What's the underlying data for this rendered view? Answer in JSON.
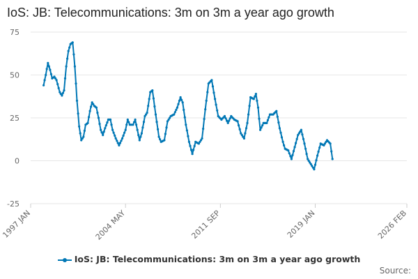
{
  "title": "IoS: JB: Telecommunications: 3m on 3m a year ago growth",
  "source_label": "Source:",
  "colors": {
    "series": "#0077b5",
    "grid": "#e6e6e6",
    "axis_text": "#666666"
  },
  "chart_data": {
    "type": "line",
    "title": "IoS: JB: Telecommunications: 3m on 3m a year ago growth",
    "x_start": "1997-01",
    "x_end": "2026-02",
    "ylim": [
      -25,
      75
    ],
    "y_ticks": [
      -25,
      0,
      25,
      50,
      75
    ],
    "x_tick_labels": [
      {
        "label": "1997 JAN",
        "month_index": 0
      },
      {
        "label": "2004 MAY",
        "month_index": 88
      },
      {
        "label": "2011 SEP",
        "month_index": 176
      },
      {
        "label": "2019 JAN",
        "month_index": 264
      },
      {
        "label": "2026 FEB",
        "month_index": 349
      }
    ],
    "grid": true,
    "legend_position": "bottom",
    "series": [
      {
        "name": "IoS: JB: Telecommunications: 3m on 3m a year ago growth",
        "start": "1998-01",
        "anchors": [
          [
            "1998-01",
            44
          ],
          [
            "1998-03",
            50
          ],
          [
            "1998-05",
            57
          ],
          [
            "1998-07",
            53
          ],
          [
            "1998-09",
            48
          ],
          [
            "1998-11",
            49
          ],
          [
            "1999-01",
            47
          ],
          [
            "1999-04",
            40
          ],
          [
            "1999-06",
            38
          ],
          [
            "1999-08",
            41
          ],
          [
            "1999-10",
            55
          ],
          [
            "1999-12",
            64
          ],
          [
            "2000-02",
            68
          ],
          [
            "2000-04",
            69
          ],
          [
            "2000-06",
            55
          ],
          [
            "2000-08",
            35
          ],
          [
            "2000-10",
            20
          ],
          [
            "2000-12",
            12
          ],
          [
            "2001-02",
            14
          ],
          [
            "2001-04",
            21
          ],
          [
            "2001-06",
            22
          ],
          [
            "2001-08",
            29
          ],
          [
            "2001-10",
            34
          ],
          [
            "2001-12",
            32
          ],
          [
            "2002-02",
            31
          ],
          [
            "2002-04",
            25
          ],
          [
            "2002-06",
            18
          ],
          [
            "2002-08",
            15
          ],
          [
            "2002-10",
            19
          ],
          [
            "2003-01",
            24
          ],
          [
            "2003-03",
            24
          ],
          [
            "2003-05",
            18
          ],
          [
            "2003-08",
            13
          ],
          [
            "2003-11",
            9
          ],
          [
            "2004-02",
            13
          ],
          [
            "2004-05",
            18
          ],
          [
            "2004-07",
            24
          ],
          [
            "2004-09",
            21
          ],
          [
            "2004-12",
            21
          ],
          [
            "2005-02",
            24
          ],
          [
            "2005-04",
            18
          ],
          [
            "2005-06",
            12
          ],
          [
            "2005-08",
            16
          ],
          [
            "2005-11",
            26
          ],
          [
            "2006-01",
            28
          ],
          [
            "2006-04",
            40
          ],
          [
            "2006-06",
            41
          ],
          [
            "2006-09",
            27
          ],
          [
            "2006-12",
            14
          ],
          [
            "2007-02",
            11
          ],
          [
            "2007-05",
            12
          ],
          [
            "2007-08",
            23
          ],
          [
            "2007-11",
            26
          ],
          [
            "2008-02",
            27
          ],
          [
            "2008-05",
            31
          ],
          [
            "2008-08",
            37
          ],
          [
            "2008-10",
            34
          ],
          [
            "2009-01",
            21
          ],
          [
            "2009-04",
            11
          ],
          [
            "2009-07",
            4
          ],
          [
            "2009-10",
            11
          ],
          [
            "2010-01",
            10
          ],
          [
            "2010-04",
            13
          ],
          [
            "2010-07",
            30
          ],
          [
            "2010-10",
            45
          ],
          [
            "2011-01",
            47
          ],
          [
            "2011-04",
            36
          ],
          [
            "2011-07",
            26
          ],
          [
            "2011-10",
            24
          ],
          [
            "2012-01",
            26
          ],
          [
            "2012-04",
            22
          ],
          [
            "2012-07",
            26
          ],
          [
            "2012-10",
            24
          ],
          [
            "2013-01",
            23
          ],
          [
            "2013-04",
            16
          ],
          [
            "2013-07",
            13
          ],
          [
            "2013-10",
            22
          ],
          [
            "2014-01",
            37
          ],
          [
            "2014-04",
            36
          ],
          [
            "2014-06",
            39
          ],
          [
            "2014-08",
            31
          ],
          [
            "2014-10",
            18
          ],
          [
            "2015-01",
            22
          ],
          [
            "2015-04",
            22
          ],
          [
            "2015-07",
            27
          ],
          [
            "2015-10",
            27
          ],
          [
            "2016-01",
            29
          ],
          [
            "2016-04",
            19
          ],
          [
            "2016-07",
            11
          ],
          [
            "2016-09",
            7
          ],
          [
            "2016-12",
            6
          ],
          [
            "2017-03",
            1
          ],
          [
            "2017-06",
            8
          ],
          [
            "2017-09",
            15
          ],
          [
            "2017-12",
            18
          ],
          [
            "2018-03",
            10
          ],
          [
            "2018-06",
            1
          ],
          [
            "2018-09",
            -2
          ],
          [
            "2018-12",
            -5
          ],
          [
            "2019-03",
            3
          ],
          [
            "2019-06",
            10
          ],
          [
            "2019-09",
            9
          ],
          [
            "2019-12",
            12
          ],
          [
            "2020-03",
            10
          ],
          [
            "2020-05",
            1
          ]
        ]
      }
    ]
  }
}
